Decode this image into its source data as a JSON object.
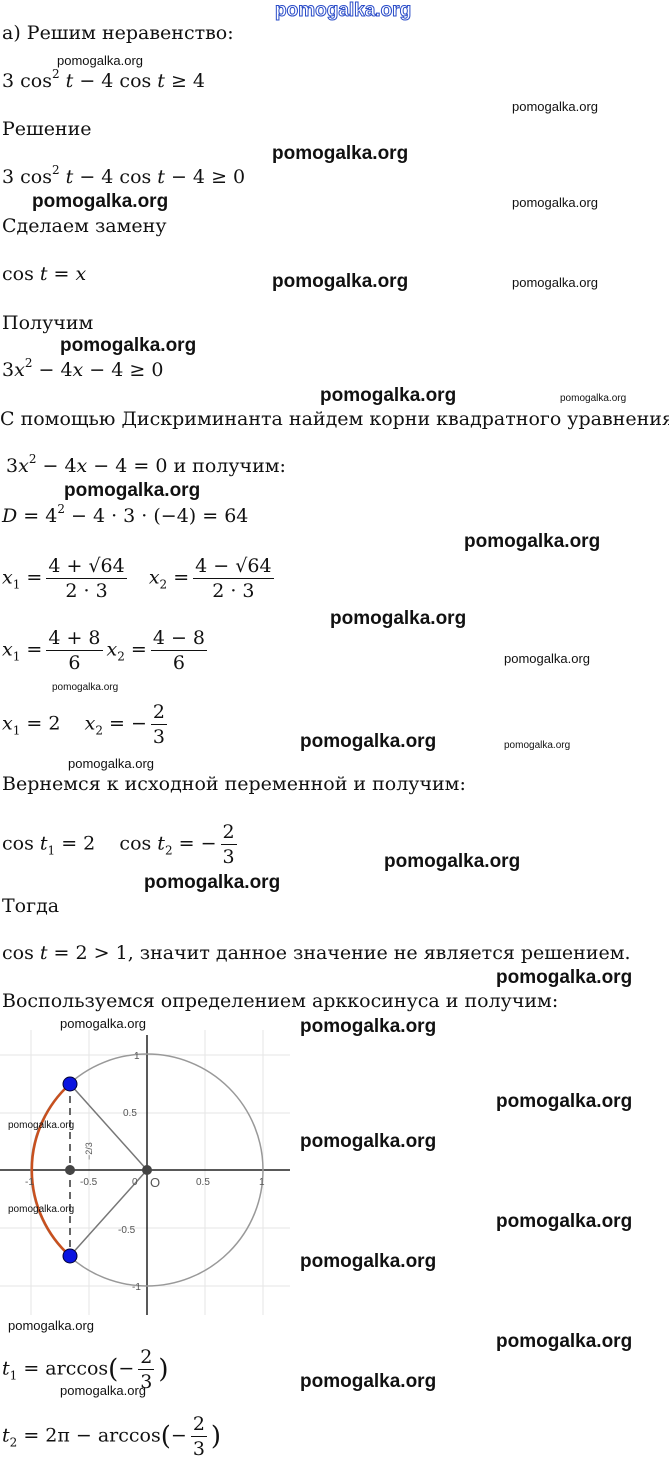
{
  "watermark": "pomogalka.org",
  "lines": {
    "l1": "а) Решим неравенство:",
    "l2": {
      "a": "3 cos",
      "p": "2",
      "b": "t",
      "c": " − 4 cos ",
      "d": "t",
      "e": " ≥ 4"
    },
    "l3": "Решение",
    "l4": {
      "a": "3 cos",
      "p": "2",
      "b": "t",
      "c": " − 4 cos ",
      "d": "t",
      "e": " − 4 ≥ 0"
    },
    "l5": "Сделаем замену",
    "l6": {
      "a": "cos ",
      "b": "t",
      "c": " = ",
      "d": "x"
    },
    "l7": "Получим",
    "l8": {
      "a": "3",
      "b": "x",
      "p": "2",
      "c": " − 4",
      "d": "x",
      "e": " − 4 ≥ 0"
    },
    "l9": "С помощью Дискриминанта найдем корни квадратного уравнения",
    "l10": {
      "a": "3",
      "b": "x",
      "p": "2",
      "c": " − 4",
      "d": "x",
      "e": " − 4 = 0 и получим:"
    },
    "l11": {
      "a": "D",
      "b": " = 4",
      "p": "2",
      "c": " − 4 · 3 · (−4) = 64"
    },
    "l12": {
      "x1": "x",
      "s1": "1",
      "eq": " =",
      "n1": "4 + √64",
      "d1": "2 · 3",
      "x2": "x",
      "s2": "2",
      "n2": "4 − √64",
      "d2": "2 · 3"
    },
    "l13": {
      "n1": "4 + 8",
      "d1": "6",
      "n2": "4 − 8",
      "d2": "6"
    },
    "l14": {
      "v1": " = 2",
      "v2": " = −",
      "n": "2",
      "d": "3"
    },
    "l15": "Вернемся к исходной переменной и получим:",
    "l16": {
      "a": "cos ",
      "t": "t",
      "v1": " = 2",
      "v2": " = −",
      "n": "2",
      "d": "3"
    },
    "l17": "Тогда",
    "l18": {
      "a": "cos ",
      "t": "t",
      "b": " = 2 > 1,  значит данное значение не является решением."
    },
    "l19": "Воспользуемся определением арккосинуса и получим:",
    "l20": {
      "t": "t",
      "s": "1",
      "b": " = arccos",
      "lp": "(",
      "m": "−",
      "n": "2",
      "d": "3",
      "rp": ")"
    },
    "l21": {
      "t": "t",
      "s": "2",
      "b": " = 2π − arccos",
      "lp": "(",
      "m": "−",
      "n": "2",
      "d": "3",
      "rp": ")"
    }
  },
  "graph": {
    "ticks_x": [
      "-1",
      "-0.5",
      "0",
      "0.5",
      "1"
    ],
    "ticks_y": [
      "1",
      "0.5",
      "-0.5",
      "-1"
    ],
    "origin": "O",
    "point_label": "−2/3",
    "colors": {
      "point": "#0a14e0",
      "arc": "#c8501e",
      "circle": "#999999",
      "axis": "#222222"
    }
  }
}
